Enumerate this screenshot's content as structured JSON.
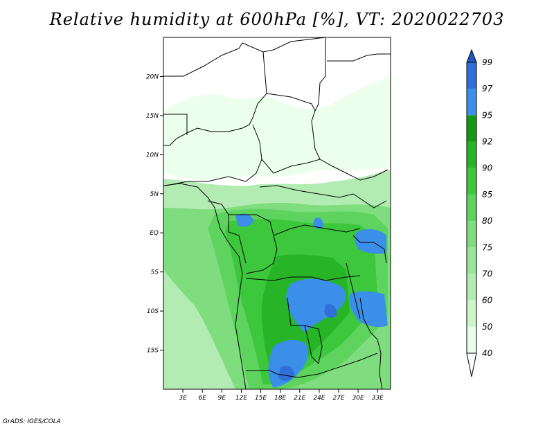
{
  "title": "Relative humidity at 600hPa [%], VT: 2020022703",
  "credit": "GrADS: IGES/COLA",
  "map": {
    "lon_range": [
      0,
      35
    ],
    "lat_range": [
      -20,
      25
    ],
    "lon_ticks": [
      "3E",
      "6E",
      "9E",
      "12E",
      "15E",
      "18E",
      "21E",
      "24E",
      "27E",
      "30E",
      "33E"
    ],
    "lon_values": [
      3,
      6,
      9,
      12,
      15,
      18,
      21,
      24,
      27,
      30,
      33
    ],
    "lat_ticks": [
      "20N",
      "15N",
      "10N",
      "5N",
      "EQ",
      "5S",
      "10S",
      "15S"
    ],
    "lat_values": [
      20,
      15,
      10,
      5,
      0,
      -5,
      -10,
      -15
    ]
  },
  "colorbar": {
    "levels": [
      "40",
      "50",
      "60",
      "70",
      "75",
      "80",
      "85",
      "90",
      "92",
      "95",
      "97",
      "99"
    ],
    "colors": [
      "#ffffff",
      "#e6ffe6",
      "#ccf5cc",
      "#b3ecb3",
      "#99e699",
      "#7fdd7f",
      "#5ed35e",
      "#3dc73d",
      "#27b527",
      "#149914",
      "#3b8fe8",
      "#2f6fd8",
      "#2457c0"
    ]
  }
}
